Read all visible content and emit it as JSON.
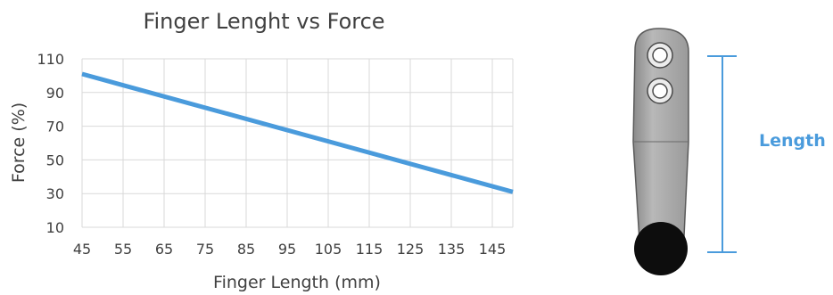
{
  "chart_data": {
    "type": "line",
    "title": "Finger Lenght vs Force",
    "xlabel": "Finger Length (mm)",
    "ylabel": "Force (%)",
    "x_ticks": [
      45,
      55,
      65,
      75,
      85,
      95,
      105,
      115,
      125,
      135,
      145
    ],
    "y_ticks": [
      10,
      30,
      50,
      70,
      90,
      110
    ],
    "xlim": [
      45,
      150
    ],
    "ylim": [
      10,
      110
    ],
    "grid": true,
    "legend": "none",
    "series": [
      {
        "x": [
          45,
          150
        ],
        "y": [
          101,
          31
        ],
        "color": "#4a9bdc"
      }
    ]
  },
  "diagram": {
    "length_label": "Length",
    "accent_color": "#4a9bdc"
  }
}
